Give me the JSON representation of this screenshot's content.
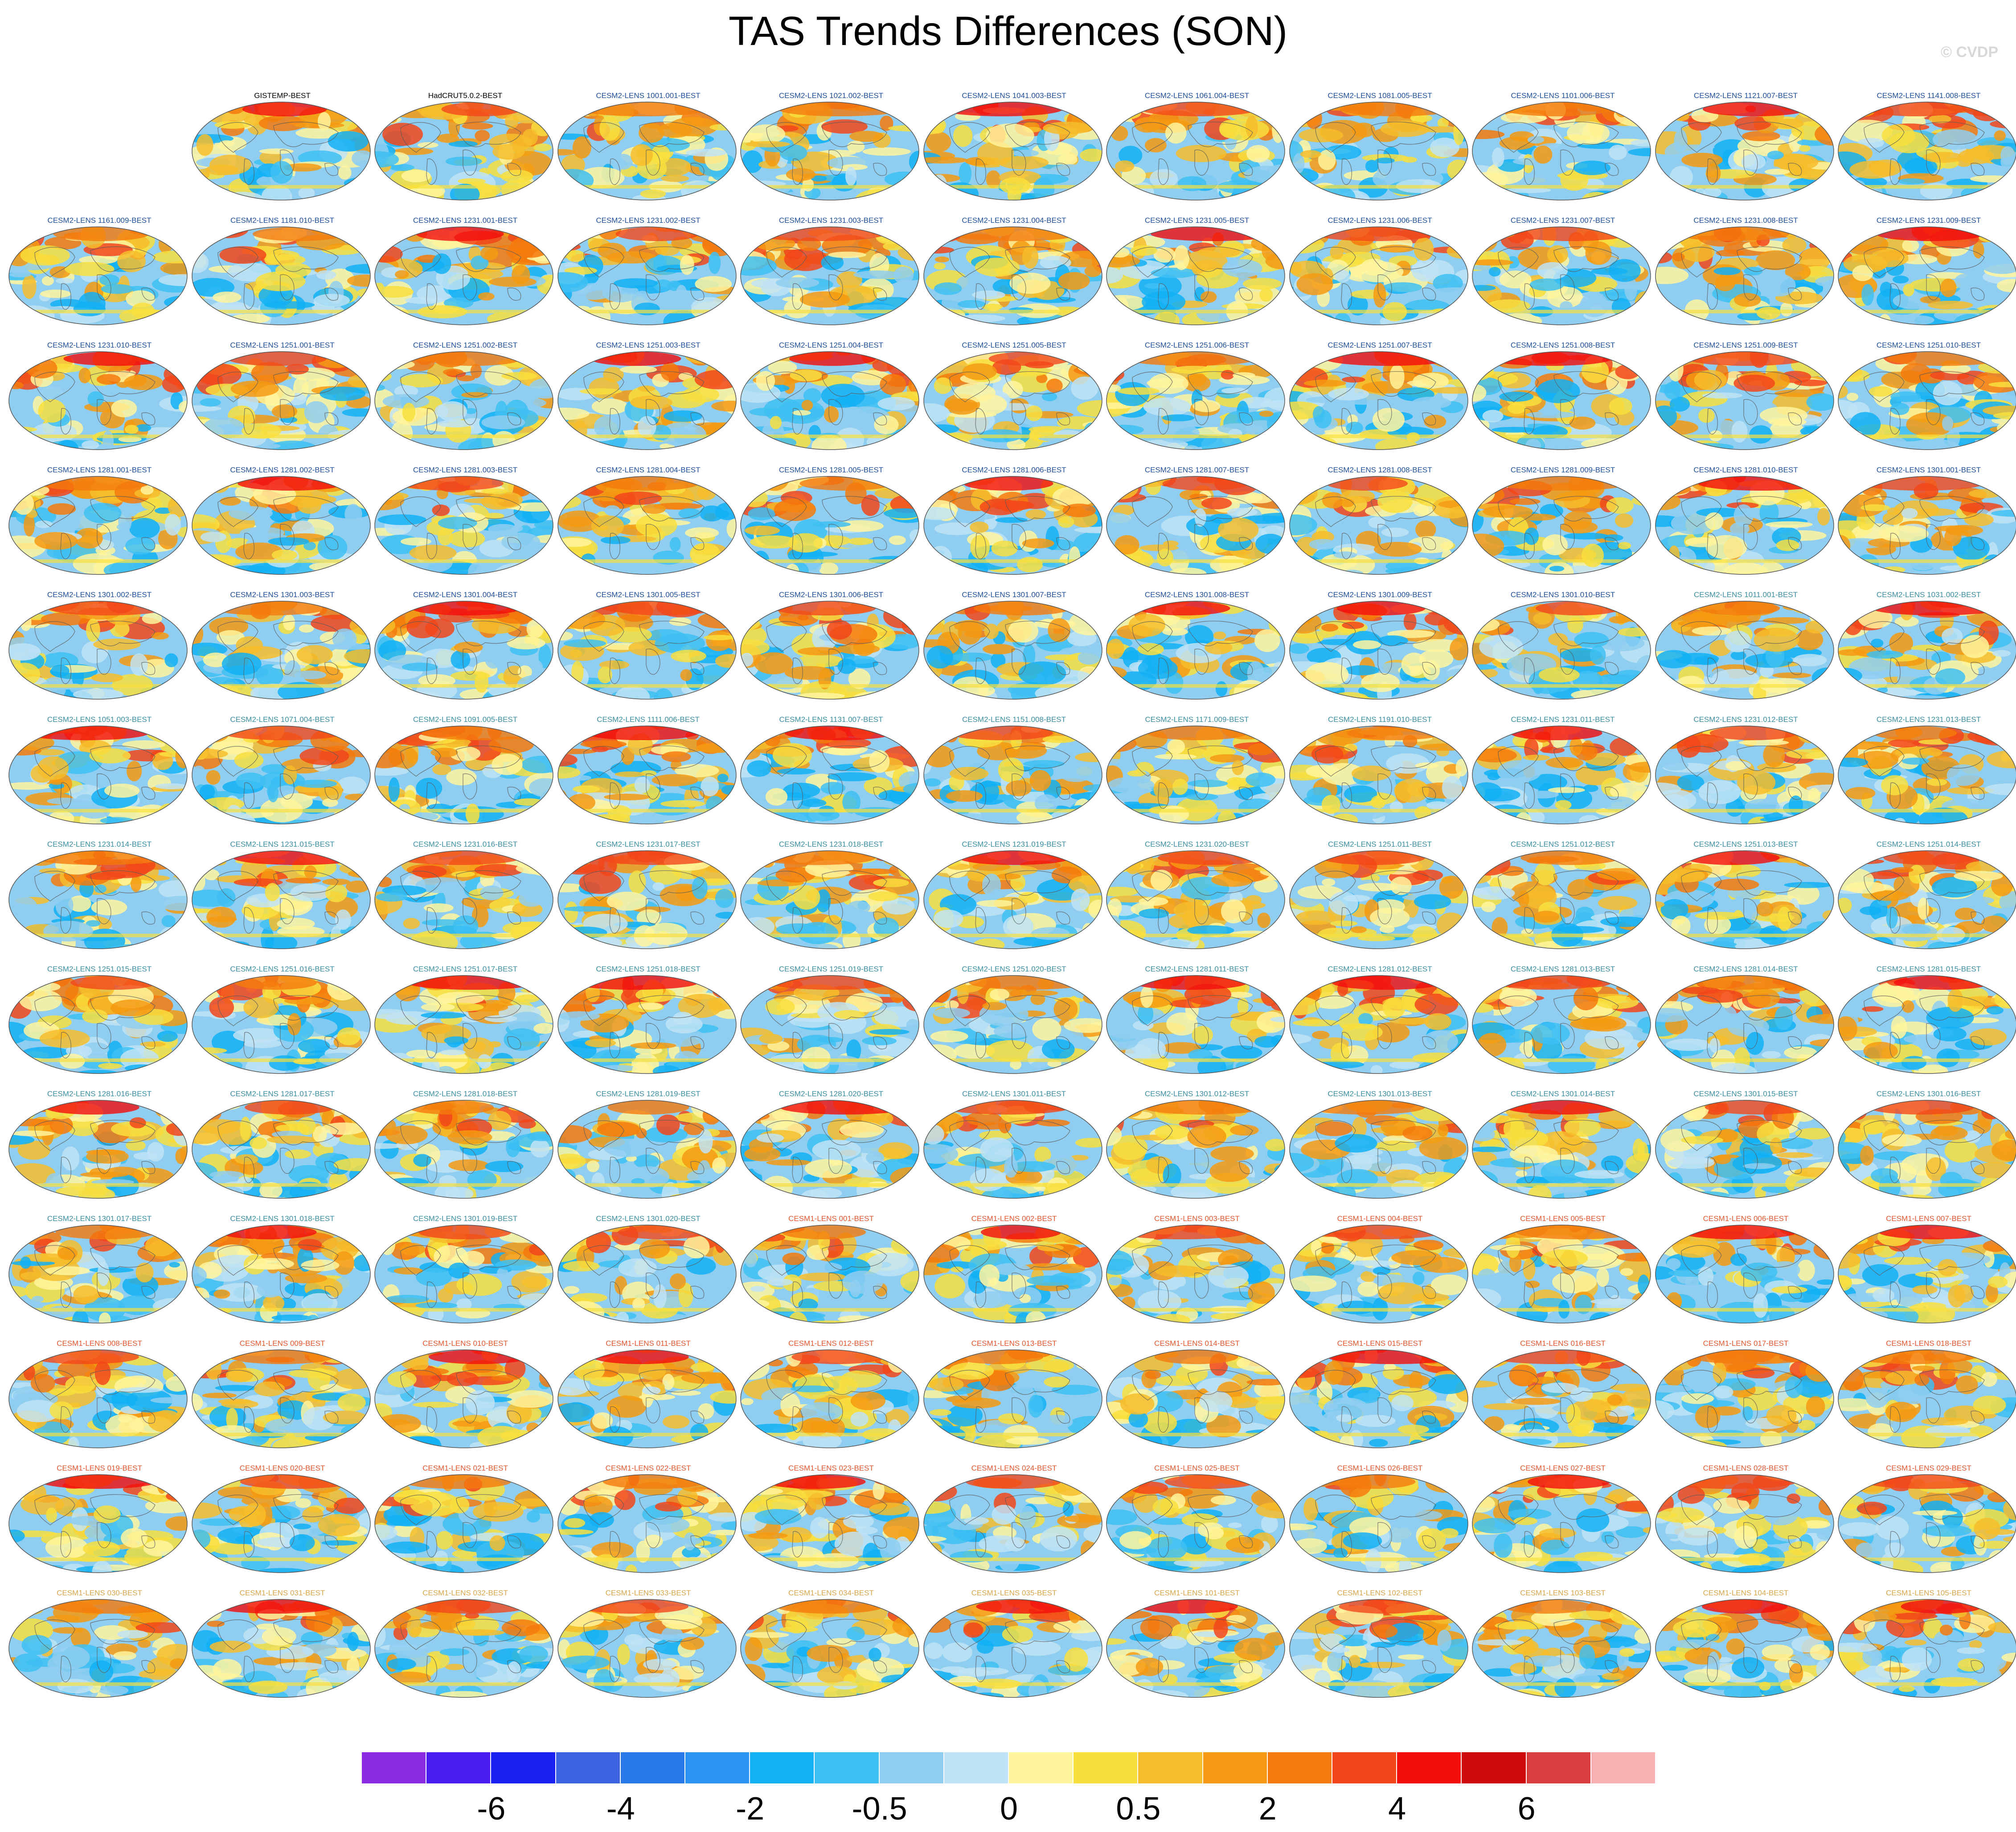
{
  "title": "TAS Trends Differences (SON)",
  "copyright": "© CVDP",
  "grid": {
    "rows": 13,
    "cols": 11,
    "first_row_offset": 1
  },
  "title_colors": {
    "obs": "#000000",
    "cesm2a": "#1f4f9a",
    "cesm2b": "#3a8fa0",
    "cesm1a": "#e4572e",
    "cesm1b": "#d8a64a"
  },
  "panels": [
    {
      "label": "GISTEMP-BEST",
      "group": "obs"
    },
    {
      "label": "HadCRUT5.0.2-BEST",
      "group": "obs"
    },
    {
      "label": "CESM2-LENS 1001.001-BEST",
      "group": "cesm2a"
    },
    {
      "label": "CESM2-LENS 1021.002-BEST",
      "group": "cesm2a"
    },
    {
      "label": "CESM2-LENS 1041.003-BEST",
      "group": "cesm2a"
    },
    {
      "label": "CESM2-LENS 1061.004-BEST",
      "group": "cesm2a"
    },
    {
      "label": "CESM2-LENS 1081.005-BEST",
      "group": "cesm2a"
    },
    {
      "label": "CESM2-LENS 1101.006-BEST",
      "group": "cesm2a"
    },
    {
      "label": "CESM2-LENS 1121.007-BEST",
      "group": "cesm2a"
    },
    {
      "label": "CESM2-LENS 1141.008-BEST",
      "group": "cesm2a"
    },
    {
      "label": "CESM2-LENS 1161.009-BEST",
      "group": "cesm2a"
    },
    {
      "label": "CESM2-LENS 1181.010-BEST",
      "group": "cesm2a"
    },
    {
      "label": "CESM2-LENS 1231.001-BEST",
      "group": "cesm2a"
    },
    {
      "label": "CESM2-LENS 1231.002-BEST",
      "group": "cesm2a"
    },
    {
      "label": "CESM2-LENS 1231.003-BEST",
      "group": "cesm2a"
    },
    {
      "label": "CESM2-LENS 1231.004-BEST",
      "group": "cesm2a"
    },
    {
      "label": "CESM2-LENS 1231.005-BEST",
      "group": "cesm2a"
    },
    {
      "label": "CESM2-LENS 1231.006-BEST",
      "group": "cesm2a"
    },
    {
      "label": "CESM2-LENS 1231.007-BEST",
      "group": "cesm2a"
    },
    {
      "label": "CESM2-LENS 1231.008-BEST",
      "group": "cesm2a"
    },
    {
      "label": "CESM2-LENS 1231.009-BEST",
      "group": "cesm2a"
    },
    {
      "label": "CESM2-LENS 1231.010-BEST",
      "group": "cesm2a"
    },
    {
      "label": "CESM2-LENS 1251.001-BEST",
      "group": "cesm2a"
    },
    {
      "label": "CESM2-LENS 1251.002-BEST",
      "group": "cesm2a"
    },
    {
      "label": "CESM2-LENS 1251.003-BEST",
      "group": "cesm2a"
    },
    {
      "label": "CESM2-LENS 1251.004-BEST",
      "group": "cesm2a"
    },
    {
      "label": "CESM2-LENS 1251.005-BEST",
      "group": "cesm2a"
    },
    {
      "label": "CESM2-LENS 1251.006-BEST",
      "group": "cesm2a"
    },
    {
      "label": "CESM2-LENS 1251.007-BEST",
      "group": "cesm2a"
    },
    {
      "label": "CESM2-LENS 1251.008-BEST",
      "group": "cesm2a"
    },
    {
      "label": "CESM2-LENS 1251.009-BEST",
      "group": "cesm2a"
    },
    {
      "label": "CESM2-LENS 1251.010-BEST",
      "group": "cesm2a"
    },
    {
      "label": "CESM2-LENS 1281.001-BEST",
      "group": "cesm2a"
    },
    {
      "label": "CESM2-LENS 1281.002-BEST",
      "group": "cesm2a"
    },
    {
      "label": "CESM2-LENS 1281.003-BEST",
      "group": "cesm2a"
    },
    {
      "label": "CESM2-LENS 1281.004-BEST",
      "group": "cesm2a"
    },
    {
      "label": "CESM2-LENS 1281.005-BEST",
      "group": "cesm2a"
    },
    {
      "label": "CESM2-LENS 1281.006-BEST",
      "group": "cesm2a"
    },
    {
      "label": "CESM2-LENS 1281.007-BEST",
      "group": "cesm2a"
    },
    {
      "label": "CESM2-LENS 1281.008-BEST",
      "group": "cesm2a"
    },
    {
      "label": "CESM2-LENS 1281.009-BEST",
      "group": "cesm2a"
    },
    {
      "label": "CESM2-LENS 1281.010-BEST",
      "group": "cesm2a"
    },
    {
      "label": "CESM2-LENS 1301.001-BEST",
      "group": "cesm2a"
    },
    {
      "label": "CESM2-LENS 1301.002-BEST",
      "group": "cesm2a"
    },
    {
      "label": "CESM2-LENS 1301.003-BEST",
      "group": "cesm2a"
    },
    {
      "label": "CESM2-LENS 1301.004-BEST",
      "group": "cesm2a"
    },
    {
      "label": "CESM2-LENS 1301.005-BEST",
      "group": "cesm2a"
    },
    {
      "label": "CESM2-LENS 1301.006-BEST",
      "group": "cesm2a"
    },
    {
      "label": "CESM2-LENS 1301.007-BEST",
      "group": "cesm2a"
    },
    {
      "label": "CESM2-LENS 1301.008-BEST",
      "group": "cesm2a"
    },
    {
      "label": "CESM2-LENS 1301.009-BEST",
      "group": "cesm2a"
    },
    {
      "label": "CESM2-LENS 1301.010-BEST",
      "group": "cesm2a"
    },
    {
      "label": "CESM2-LENS 1011.001-BEST",
      "group": "cesm2b"
    },
    {
      "label": "CESM2-LENS 1031.002-BEST",
      "group": "cesm2b"
    },
    {
      "label": "CESM2-LENS 1051.003-BEST",
      "group": "cesm2b"
    },
    {
      "label": "CESM2-LENS 1071.004-BEST",
      "group": "cesm2b"
    },
    {
      "label": "CESM2-LENS 1091.005-BEST",
      "group": "cesm2b"
    },
    {
      "label": "CESM2-LENS 1111.006-BEST",
      "group": "cesm2b"
    },
    {
      "label": "CESM2-LENS 1131.007-BEST",
      "group": "cesm2b"
    },
    {
      "label": "CESM2-LENS 1151.008-BEST",
      "group": "cesm2b"
    },
    {
      "label": "CESM2-LENS 1171.009-BEST",
      "group": "cesm2b"
    },
    {
      "label": "CESM2-LENS 1191.010-BEST",
      "group": "cesm2b"
    },
    {
      "label": "CESM2-LENS 1231.011-BEST",
      "group": "cesm2b"
    },
    {
      "label": "CESM2-LENS 1231.012-BEST",
      "group": "cesm2b"
    },
    {
      "label": "CESM2-LENS 1231.013-BEST",
      "group": "cesm2b"
    },
    {
      "label": "CESM2-LENS 1231.014-BEST",
      "group": "cesm2b"
    },
    {
      "label": "CESM2-LENS 1231.015-BEST",
      "group": "cesm2b"
    },
    {
      "label": "CESM2-LENS 1231.016-BEST",
      "group": "cesm2b"
    },
    {
      "label": "CESM2-LENS 1231.017-BEST",
      "group": "cesm2b"
    },
    {
      "label": "CESM2-LENS 1231.018-BEST",
      "group": "cesm2b"
    },
    {
      "label": "CESM2-LENS 1231.019-BEST",
      "group": "cesm2b"
    },
    {
      "label": "CESM2-LENS 1231.020-BEST",
      "group": "cesm2b"
    },
    {
      "label": "CESM2-LENS 1251.011-BEST",
      "group": "cesm2b"
    },
    {
      "label": "CESM2-LENS 1251.012-BEST",
      "group": "cesm2b"
    },
    {
      "label": "CESM2-LENS 1251.013-BEST",
      "group": "cesm2b"
    },
    {
      "label": "CESM2-LENS 1251.014-BEST",
      "group": "cesm2b"
    },
    {
      "label": "CESM2-LENS 1251.015-BEST",
      "group": "cesm2b"
    },
    {
      "label": "CESM2-LENS 1251.016-BEST",
      "group": "cesm2b"
    },
    {
      "label": "CESM2-LENS 1251.017-BEST",
      "group": "cesm2b"
    },
    {
      "label": "CESM2-LENS 1251.018-BEST",
      "group": "cesm2b"
    },
    {
      "label": "CESM2-LENS 1251.019-BEST",
      "group": "cesm2b"
    },
    {
      "label": "CESM2-LENS 1251.020-BEST",
      "group": "cesm2b"
    },
    {
      "label": "CESM2-LENS 1281.011-BEST",
      "group": "cesm2b"
    },
    {
      "label": "CESM2-LENS 1281.012-BEST",
      "group": "cesm2b"
    },
    {
      "label": "CESM2-LENS 1281.013-BEST",
      "group": "cesm2b"
    },
    {
      "label": "CESM2-LENS 1281.014-BEST",
      "group": "cesm2b"
    },
    {
      "label": "CESM2-LENS 1281.015-BEST",
      "group": "cesm2b"
    },
    {
      "label": "CESM2-LENS 1281.016-BEST",
      "group": "cesm2b"
    },
    {
      "label": "CESM2-LENS 1281.017-BEST",
      "group": "cesm2b"
    },
    {
      "label": "CESM2-LENS 1281.018-BEST",
      "group": "cesm2b"
    },
    {
      "label": "CESM2-LENS 1281.019-BEST",
      "group": "cesm2b"
    },
    {
      "label": "CESM2-LENS 1281.020-BEST",
      "group": "cesm2b"
    },
    {
      "label": "CESM2-LENS 1301.011-BEST",
      "group": "cesm2b"
    },
    {
      "label": "CESM2-LENS 1301.012-BEST",
      "group": "cesm2b"
    },
    {
      "label": "CESM2-LENS 1301.013-BEST",
      "group": "cesm2b"
    },
    {
      "label": "CESM2-LENS 1301.014-BEST",
      "group": "cesm2b"
    },
    {
      "label": "CESM2-LENS 1301.015-BEST",
      "group": "cesm2b"
    },
    {
      "label": "CESM2-LENS 1301.016-BEST",
      "group": "cesm2b"
    },
    {
      "label": "CESM2-LENS 1301.017-BEST",
      "group": "cesm2b"
    },
    {
      "label": "CESM2-LENS 1301.018-BEST",
      "group": "cesm2b"
    },
    {
      "label": "CESM2-LENS 1301.019-BEST",
      "group": "cesm2b"
    },
    {
      "label": "CESM2-LENS 1301.020-BEST",
      "group": "cesm2b"
    },
    {
      "label": "CESM1-LENS 001-BEST",
      "group": "cesm1a"
    },
    {
      "label": "CESM1-LENS 002-BEST",
      "group": "cesm1a"
    },
    {
      "label": "CESM1-LENS 003-BEST",
      "group": "cesm1a"
    },
    {
      "label": "CESM1-LENS 004-BEST",
      "group": "cesm1a"
    },
    {
      "label": "CESM1-LENS 005-BEST",
      "group": "cesm1a"
    },
    {
      "label": "CESM1-LENS 006-BEST",
      "group": "cesm1a"
    },
    {
      "label": "CESM1-LENS 007-BEST",
      "group": "cesm1a"
    },
    {
      "label": "CESM1-LENS 008-BEST",
      "group": "cesm1a"
    },
    {
      "label": "CESM1-LENS 009-BEST",
      "group": "cesm1a"
    },
    {
      "label": "CESM1-LENS 010-BEST",
      "group": "cesm1a"
    },
    {
      "label": "CESM1-LENS 011-BEST",
      "group": "cesm1a"
    },
    {
      "label": "CESM1-LENS 012-BEST",
      "group": "cesm1a"
    },
    {
      "label": "CESM1-LENS 013-BEST",
      "group": "cesm1a"
    },
    {
      "label": "CESM1-LENS 014-BEST",
      "group": "cesm1a"
    },
    {
      "label": "CESM1-LENS 015-BEST",
      "group": "cesm1a"
    },
    {
      "label": "CESM1-LENS 016-BEST",
      "group": "cesm1a"
    },
    {
      "label": "CESM1-LENS 017-BEST",
      "group": "cesm1a"
    },
    {
      "label": "CESM1-LENS 018-BEST",
      "group": "cesm1a"
    },
    {
      "label": "CESM1-LENS 019-BEST",
      "group": "cesm1a"
    },
    {
      "label": "CESM1-LENS 020-BEST",
      "group": "cesm1a"
    },
    {
      "label": "CESM1-LENS 021-BEST",
      "group": "cesm1a"
    },
    {
      "label": "CESM1-LENS 022-BEST",
      "group": "cesm1a"
    },
    {
      "label": "CESM1-LENS 023-BEST",
      "group": "cesm1a"
    },
    {
      "label": "CESM1-LENS 024-BEST",
      "group": "cesm1a"
    },
    {
      "label": "CESM1-LENS 025-BEST",
      "group": "cesm1a"
    },
    {
      "label": "CESM1-LENS 026-BEST",
      "group": "cesm1a"
    },
    {
      "label": "CESM1-LENS 027-BEST",
      "group": "cesm1a"
    },
    {
      "label": "CESM1-LENS 028-BEST",
      "group": "cesm1a"
    },
    {
      "label": "CESM1-LENS 029-BEST",
      "group": "cesm1a"
    },
    {
      "label": "CESM1-LENS 030-BEST",
      "group": "cesm1b"
    },
    {
      "label": "CESM1-LENS 031-BEST",
      "group": "cesm1b"
    },
    {
      "label": "CESM1-LENS 032-BEST",
      "group": "cesm1b"
    },
    {
      "label": "CESM1-LENS 033-BEST",
      "group": "cesm1b"
    },
    {
      "label": "CESM1-LENS 034-BEST",
      "group": "cesm1b"
    },
    {
      "label": "CESM1-LENS 035-BEST",
      "group": "cesm1b"
    },
    {
      "label": "CESM1-LENS 101-BEST",
      "group": "cesm1b"
    },
    {
      "label": "CESM1-LENS 102-BEST",
      "group": "cesm1b"
    },
    {
      "label": "CESM1-LENS 103-BEST",
      "group": "cesm1b"
    },
    {
      "label": "CESM1-LENS 104-BEST",
      "group": "cesm1b"
    },
    {
      "label": "CESM1-LENS 105-BEST",
      "group": "cesm1b"
    }
  ],
  "colorbar": {
    "colors": [
      "#8a2be2",
      "#4b1cf0",
      "#1a22f2",
      "#3d62e0",
      "#2a79e8",
      "#2a95f2",
      "#12b0f5",
      "#3ec0f2",
      "#8fcef0",
      "#bfe3f4",
      "#fff59e",
      "#f8df3e",
      "#f6bd2a",
      "#f59a12",
      "#f47a0c",
      "#f2471a",
      "#f20c0c",
      "#cc0a0a",
      "#d83e3e",
      "#f8b1b1"
    ],
    "tick_labels": [
      {
        "text": "-6",
        "after_box": 2
      },
      {
        "text": "-4",
        "after_box": 4
      },
      {
        "text": "-2",
        "after_box": 6
      },
      {
        "text": "-0.5",
        "after_box": 8
      },
      {
        "text": "0",
        "after_box": 10
      },
      {
        "text": "0.5",
        "after_box": 12
      },
      {
        "text": "2",
        "after_box": 14
      },
      {
        "text": "4",
        "after_box": 16
      },
      {
        "text": "6",
        "after_box": 18
      }
    ]
  }
}
